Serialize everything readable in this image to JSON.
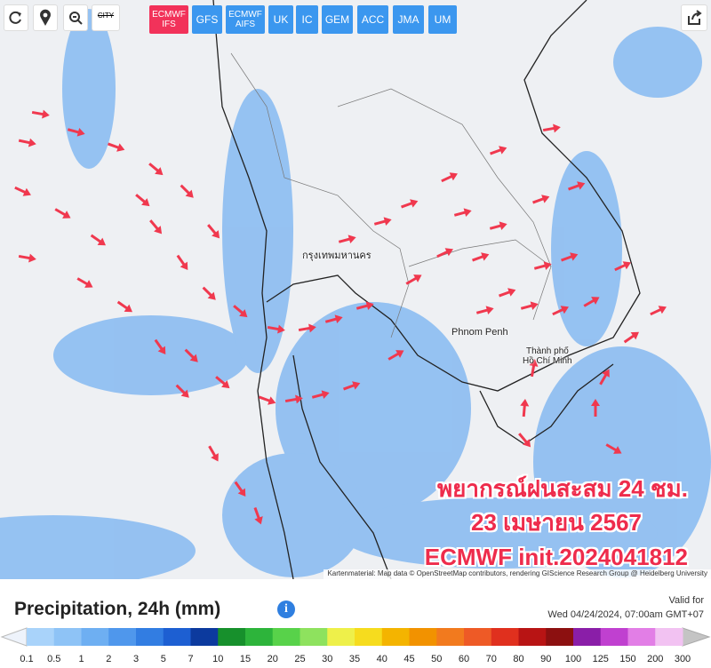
{
  "toolbar": {
    "city_button": "CITY"
  },
  "models": [
    {
      "name": "ECMWF",
      "sub": "IFS"
    },
    {
      "name": "GFS"
    },
    {
      "name": "ECMWF",
      "sub": "AIFS"
    },
    {
      "name": "UK"
    },
    {
      "name": "IC"
    },
    {
      "name": "GEM"
    },
    {
      "name": "ACC"
    },
    {
      "name": "JMA"
    },
    {
      "name": "UM"
    }
  ],
  "map": {
    "places": [
      "กรุงเทพมหานคร",
      "Phnom Penh",
      "Thành phố",
      "Hồ Chí Minh"
    ],
    "overlay": [
      "พยากรณ์ฝนสะสม 24 ชม.",
      "23 เมษายน 2567",
      "ECMWF init.2024041812"
    ],
    "attribution": "Kartenmaterial: Map data © OpenStreetMap contributors, rendering GIScience Research Group @ Heidelberg University"
  },
  "legend": {
    "title": "Precipitation, 24h (mm)",
    "valid_label": "Valid for",
    "valid_time": "Wed 04/24/2024, 07:00am GMT+07",
    "ticks": [
      0.1,
      0.5,
      1,
      2,
      3,
      5,
      7,
      10,
      15,
      20,
      25,
      30,
      35,
      40,
      45,
      50,
      60,
      70,
      80,
      90,
      100,
      125,
      150,
      200,
      300
    ],
    "colors": [
      "#a9d3fa",
      "#8ec3f6",
      "#6eaff2",
      "#4f97ec",
      "#327de2",
      "#1d5fd2",
      "#0c3a9e",
      "#17902c",
      "#2db43b",
      "#58d24a",
      "#8ee25e",
      "#eef04a",
      "#f6dc1e",
      "#f4b400",
      "#f29200",
      "#f27a1e",
      "#ee5a26",
      "#e0301e",
      "#b81414",
      "#8c1010",
      "#8a1ea8",
      "#c040d0",
      "#e27ee6",
      "#f2c2f2"
    ],
    "low_color": "#eef3fb",
    "high_color": "#c4c4c4"
  }
}
